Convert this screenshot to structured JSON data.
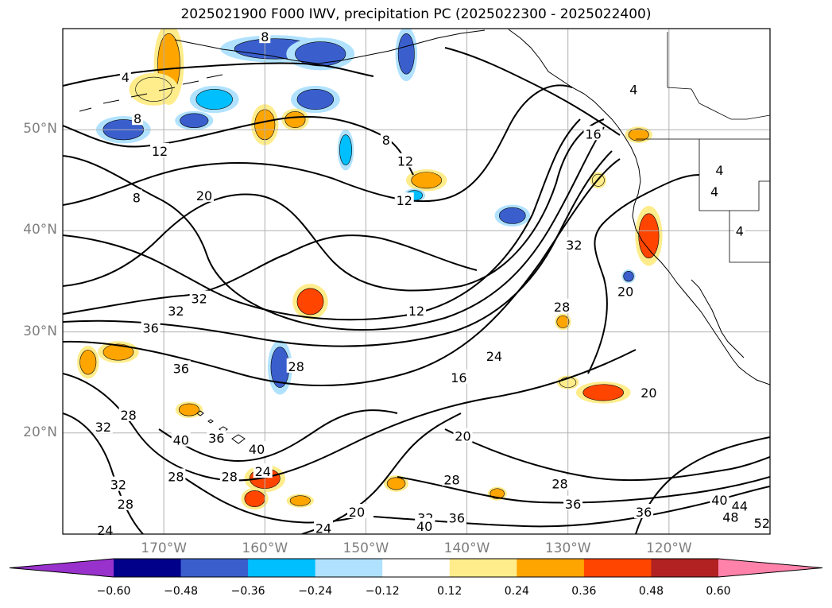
{
  "title": "2025021900 F000 IWV, precipitation PC (2025022300 - 2025022400)",
  "map": {
    "lat_labels": [
      {
        "text": "50°N",
        "lat": 50
      },
      {
        "text": "40°N",
        "lat": 40
      },
      {
        "text": "30°N",
        "lat": 30
      },
      {
        "text": "20°N",
        "lat": 20
      }
    ],
    "lon_labels": [
      {
        "text": "170°W",
        "lon": -170
      },
      {
        "text": "160°W",
        "lon": -160
      },
      {
        "text": "150°W",
        "lon": -150
      },
      {
        "text": "140°W",
        "lon": -140
      },
      {
        "text": "130°W",
        "lon": -130
      },
      {
        "text": "120°W",
        "lon": -120
      }
    ],
    "contour_labels": [
      {
        "text": "4",
        "lon": -173.8,
        "lat": 55.2
      },
      {
        "text": "8",
        "lon": -172.6,
        "lat": 51.1
      },
      {
        "text": "12",
        "lon": -170.4,
        "lat": 47.9
      },
      {
        "text": "8",
        "lon": -172.7,
        "lat": 43.3
      },
      {
        "text": "20",
        "lon": -166.0,
        "lat": 43.5
      },
      {
        "text": "8",
        "lon": -148.0,
        "lat": 49.0
      },
      {
        "text": "12",
        "lon": -146.1,
        "lat": 46.9
      },
      {
        "text": "12",
        "lon": -146.2,
        "lat": 43.0
      },
      {
        "text": "32",
        "lon": -129.4,
        "lat": 38.6
      },
      {
        "text": "32",
        "lon": -166.5,
        "lat": 33.3
      },
      {
        "text": "32",
        "lon": -168.8,
        "lat": 32.1
      },
      {
        "text": "36",
        "lon": -171.3,
        "lat": 30.4
      },
      {
        "text": "12",
        "lon": -145.0,
        "lat": 32.1
      },
      {
        "text": "28",
        "lon": -130.6,
        "lat": 32.5
      },
      {
        "text": "20",
        "lon": -124.3,
        "lat": 34.0
      },
      {
        "text": "28",
        "lon": -156.9,
        "lat": 26.6
      },
      {
        "text": "24",
        "lon": -137.3,
        "lat": 27.6
      },
      {
        "text": "16",
        "lon": -140.8,
        "lat": 25.5
      },
      {
        "text": "36",
        "lon": -168.3,
        "lat": 26.4
      },
      {
        "text": "20",
        "lon": -122.0,
        "lat": 24.0
      },
      {
        "text": "28",
        "lon": -173.5,
        "lat": 21.8
      },
      {
        "text": "32",
        "lon": -176.0,
        "lat": 20.6
      },
      {
        "text": "40",
        "lon": -168.3,
        "lat": 19.3
      },
      {
        "text": "36",
        "lon": -164.8,
        "lat": 19.5
      },
      {
        "text": "40",
        "lon": -160.8,
        "lat": 18.4
      },
      {
        "text": "20",
        "lon": -140.4,
        "lat": 19.7
      },
      {
        "text": "28",
        "lon": -168.8,
        "lat": 15.7
      },
      {
        "text": "32",
        "lon": -174.5,
        "lat": 14.9
      },
      {
        "text": "24",
        "lon": -160.2,
        "lat": 16.2
      },
      {
        "text": "28",
        "lon": -163.5,
        "lat": 15.7
      },
      {
        "text": "28",
        "lon": -141.5,
        "lat": 15.4
      },
      {
        "text": "28",
        "lon": -130.8,
        "lat": 15.0
      },
      {
        "text": "28",
        "lon": -173.8,
        "lat": 13.0
      },
      {
        "text": "36",
        "lon": -129.5,
        "lat": 13.0
      },
      {
        "text": "40",
        "lon": -115.0,
        "lat": 13.4
      },
      {
        "text": "44",
        "lon": -113.0,
        "lat": 12.8
      },
      {
        "text": "36",
        "lon": -122.5,
        "lat": 12.2
      },
      {
        "text": "48",
        "lon": -113.9,
        "lat": 11.7
      },
      {
        "text": "20",
        "lon": -150.9,
        "lat": 12.2
      },
      {
        "text": "32",
        "lon": -144.1,
        "lat": 11.6
      },
      {
        "text": "36",
        "lon": -141.0,
        "lat": 11.6
      },
      {
        "text": "40",
        "lon": -144.2,
        "lat": 10.8
      },
      {
        "text": "24",
        "lon": -154.2,
        "lat": 10.6
      },
      {
        "text": "24",
        "lon": -175.8,
        "lat": 10.4
      },
      {
        "text": "52",
        "lon": -110.8,
        "lat": 11.1
      },
      {
        "text": "16",
        "lon": -127.5,
        "lat": 49.6
      },
      {
        "text": "4",
        "lon": -123.5,
        "lat": 54.0
      },
      {
        "text": "4",
        "lon": -115.0,
        "lat": 46.0
      },
      {
        "text": "4",
        "lon": -115.5,
        "lat": 43.9
      },
      {
        "text": "4",
        "lon": -113.0,
        "lat": 40.0
      },
      {
        "text": "8",
        "lon": -160.0,
        "lat": 59.2
      }
    ],
    "precip_blobs": [
      {
        "lon": -169.5,
        "lat": 56.5,
        "rx": 1.1,
        "ry": 3.0,
        "level": 0.36
      },
      {
        "lon": -171.0,
        "lat": 54.0,
        "rx": 1.8,
        "ry": 1.2,
        "level": 0.24
      },
      {
        "lon": -159.0,
        "lat": 58.0,
        "rx": 4.0,
        "ry": 1.0,
        "level": -0.36
      },
      {
        "lon": -154.5,
        "lat": 57.5,
        "rx": 2.5,
        "ry": 1.2,
        "level": -0.36
      },
      {
        "lon": -146.0,
        "lat": 57.5,
        "rx": 0.8,
        "ry": 2.0,
        "level": -0.36
      },
      {
        "lon": -155.0,
        "lat": 53.0,
        "rx": 1.8,
        "ry": 1.0,
        "level": -0.36
      },
      {
        "lon": -165.0,
        "lat": 53.0,
        "rx": 1.8,
        "ry": 1.0,
        "level": -0.24
      },
      {
        "lon": -167.0,
        "lat": 50.9,
        "rx": 1.4,
        "ry": 0.7,
        "level": -0.36
      },
      {
        "lon": -174.0,
        "lat": 50.0,
        "rx": 2.0,
        "ry": 1.0,
        "level": -0.36
      },
      {
        "lon": -160.0,
        "lat": 50.5,
        "rx": 1.0,
        "ry": 1.5,
        "level": 0.36
      },
      {
        "lon": -157.0,
        "lat": 51.0,
        "rx": 1.0,
        "ry": 0.8,
        "level": 0.36
      },
      {
        "lon": -152.0,
        "lat": 48.0,
        "rx": 0.6,
        "ry": 1.5,
        "level": -0.24
      },
      {
        "lon": -144.0,
        "lat": 45.0,
        "rx": 1.5,
        "ry": 0.8,
        "level": 0.36
      },
      {
        "lon": -145.2,
        "lat": 43.5,
        "rx": 0.8,
        "ry": 0.5,
        "level": -0.24
      },
      {
        "lon": -135.5,
        "lat": 41.5,
        "rx": 1.3,
        "ry": 0.8,
        "level": -0.36
      },
      {
        "lon": -122.0,
        "lat": 39.5,
        "rx": 1.0,
        "ry": 2.2,
        "level": 0.48
      },
      {
        "lon": -155.5,
        "lat": 33.0,
        "rx": 1.3,
        "ry": 1.3,
        "level": 0.48
      },
      {
        "lon": -158.5,
        "lat": 26.5,
        "rx": 0.9,
        "ry": 2.0,
        "level": -0.36
      },
      {
        "lon": -174.5,
        "lat": 28.0,
        "rx": 1.5,
        "ry": 0.8,
        "level": 0.36
      },
      {
        "lon": -177.5,
        "lat": 27.0,
        "rx": 0.8,
        "ry": 1.2,
        "level": 0.36
      },
      {
        "lon": -167.5,
        "lat": 22.3,
        "rx": 1.0,
        "ry": 0.6,
        "level": 0.36
      },
      {
        "lon": -126.5,
        "lat": 24.0,
        "rx": 2.0,
        "ry": 0.8,
        "level": 0.48
      },
      {
        "lon": -160.0,
        "lat": 15.5,
        "rx": 1.5,
        "ry": 1.0,
        "level": 0.48
      },
      {
        "lon": -161.0,
        "lat": 13.5,
        "rx": 1.0,
        "ry": 0.8,
        "level": 0.48
      },
      {
        "lon": -156.5,
        "lat": 13.3,
        "rx": 1.0,
        "ry": 0.5,
        "level": 0.36
      },
      {
        "lon": -130.0,
        "lat": 25.0,
        "rx": 0.8,
        "ry": 0.5,
        "level": 0.24
      },
      {
        "lon": -123.0,
        "lat": 49.5,
        "rx": 1.0,
        "ry": 0.6,
        "level": 0.36
      },
      {
        "lon": -127.0,
        "lat": 45.0,
        "rx": 0.6,
        "ry": 0.6,
        "level": 0.24
      },
      {
        "lon": -124.0,
        "lat": 35.5,
        "rx": 0.5,
        "ry": 0.5,
        "level": -0.36
      },
      {
        "lon": -130.5,
        "lat": 31.0,
        "rx": 0.6,
        "ry": 0.6,
        "level": 0.36
      },
      {
        "lon": -137.0,
        "lat": 14.0,
        "rx": 0.7,
        "ry": 0.5,
        "level": 0.36
      },
      {
        "lon": -147.0,
        "lat": 15.0,
        "rx": 0.9,
        "ry": 0.6,
        "level": 0.36
      }
    ]
  },
  "colorbar": {
    "labels": [
      "−0.60",
      "−0.48",
      "−0.36",
      "−0.24",
      "−0.12",
      "0.12",
      "0.24",
      "0.36",
      "0.48",
      "0.60"
    ],
    "colors": [
      "#9932cc",
      "#00008b",
      "#3a5fcd",
      "#00bfff",
      "#b0e2ff",
      "#ffffff",
      "#ffec8b",
      "#ffa500",
      "#ff4500",
      "#b22222",
      "#ff82ab"
    ]
  }
}
